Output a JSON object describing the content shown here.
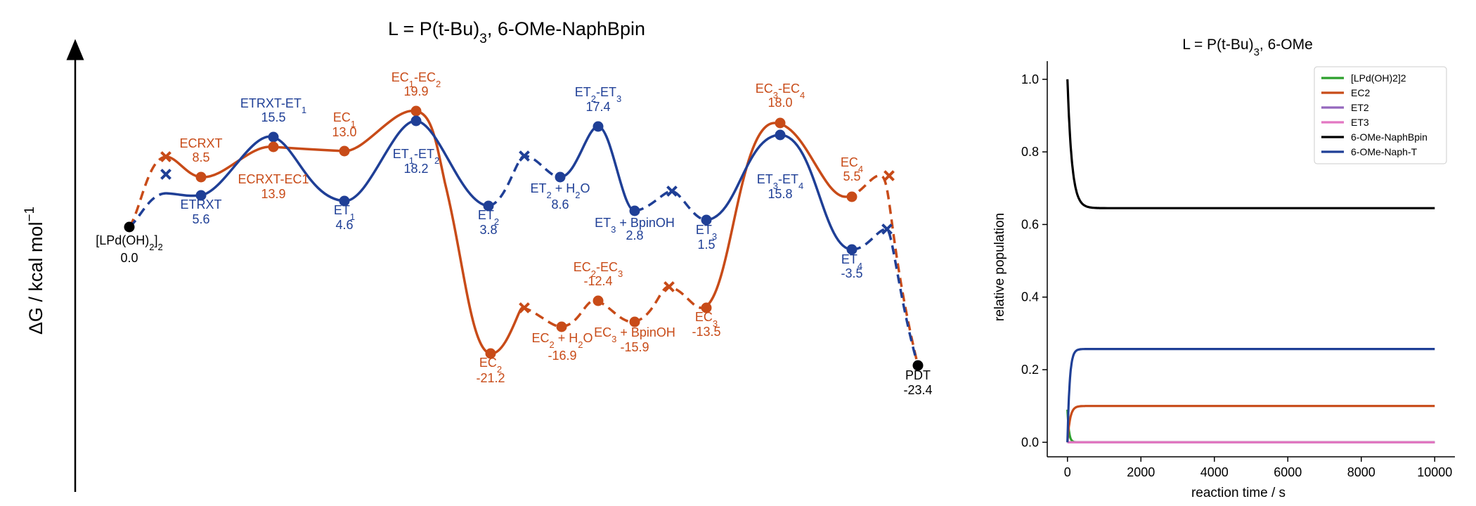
{
  "chart_data": [
    {
      "type": "line",
      "title": "L = P(t-Bu)3, 6-OMe-NaphBpin",
      "ylabel": "ΔG / kcal mol-1",
      "colors": {
        "orange": "#c84b18",
        "blue": "#1f3f96",
        "black": "#000000"
      },
      "points": [
        {
          "id": "start",
          "name": "[LPd(OH)2]2",
          "value": "0.0",
          "color": "black",
          "kind": "dot"
        },
        {
          "id": "ecrxt",
          "name": "ECRXT",
          "value": "8.5",
          "color": "orange",
          "kind": "dot"
        },
        {
          "id": "etrxt",
          "name": "ETRXT",
          "value": "5.6",
          "color": "blue",
          "kind": "dot"
        },
        {
          "id": "etrxt_et1",
          "name": "ETRXT-ET1",
          "value": "15.5",
          "color": "blue",
          "kind": "dot"
        },
        {
          "id": "ecrxt_ec1",
          "name": "ECRXT-EC1",
          "value": "13.9",
          "color": "orange",
          "kind": "dot"
        },
        {
          "id": "ec1",
          "name": "EC1",
          "value": "13.0",
          "color": "orange",
          "kind": "dot"
        },
        {
          "id": "et1",
          "name": "ET1",
          "value": "4.6",
          "color": "blue",
          "kind": "dot"
        },
        {
          "id": "ec1_ec2",
          "name": "EC1-EC2",
          "value": "19.9",
          "color": "orange",
          "kind": "dot"
        },
        {
          "id": "et1_et2",
          "name": "ET1-ET2",
          "value": "18.2",
          "color": "blue",
          "kind": "dot"
        },
        {
          "id": "et2",
          "name": "ET2",
          "value": "3.8",
          "color": "blue",
          "kind": "dot"
        },
        {
          "id": "et2_h2o",
          "name": "ET2 + H2O",
          "value": "8.6",
          "color": "blue",
          "kind": "dot"
        },
        {
          "id": "et2_et3",
          "name": "ET2-ET3",
          "value": "17.4",
          "color": "blue",
          "kind": "dot"
        },
        {
          "id": "et3_bpinoh",
          "name": "ET3 + BpinOH",
          "value": "2.8",
          "color": "blue",
          "kind": "dot"
        },
        {
          "id": "et3",
          "name": "ET3",
          "value": "1.5",
          "color": "blue",
          "kind": "dot"
        },
        {
          "id": "et3_et4",
          "name": "ET3-ET4",
          "value": "15.8",
          "color": "blue",
          "kind": "dot"
        },
        {
          "id": "ec3_ec4",
          "name": "EC3-EC4",
          "value": "18.0",
          "color": "orange",
          "kind": "dot"
        },
        {
          "id": "ec4",
          "name": "EC4",
          "value": "5.5",
          "color": "orange",
          "kind": "dot"
        },
        {
          "id": "et4",
          "name": "ET4",
          "value": "-3.5",
          "color": "blue",
          "kind": "dot"
        },
        {
          "id": "ec2",
          "name": "EC2",
          "value": "-21.2",
          "color": "orange",
          "kind": "dot"
        },
        {
          "id": "ec2_h2o",
          "name": "EC2 + H2O",
          "value": "-16.9",
          "color": "orange",
          "kind": "dot"
        },
        {
          "id": "ec2_ec3",
          "name": "EC2-EC3",
          "value": "-12.4",
          "color": "orange",
          "kind": "dot"
        },
        {
          "id": "ec3_bpinoh",
          "name": "EC3 + BpinOH",
          "value": "-15.9",
          "color": "orange",
          "kind": "dot"
        },
        {
          "id": "ec3",
          "name": "EC3",
          "value": "-13.5",
          "color": "orange",
          "kind": "dot"
        },
        {
          "id": "pdt",
          "name": "PDT",
          "value": "-23.4",
          "color": "black",
          "kind": "dot"
        }
      ]
    },
    {
      "type": "line",
      "title": "L = P(t-Bu)3, 6-OMe",
      "xlabel": "reaction time / s",
      "ylabel": "relative population",
      "xlim": [
        0,
        10000
      ],
      "ylim": [
        0,
        1.0
      ],
      "xticks": [
        "0",
        "2000",
        "4000",
        "6000",
        "8000",
        "10000"
      ],
      "yticks": [
        "0.0",
        "0.2",
        "0.4",
        "0.6",
        "0.8",
        "1.0"
      ],
      "legend_position": "top-right",
      "series": [
        {
          "name": "[LPd(OH)2]2",
          "color": "#2ca02c",
          "start": 0.09,
          "end": 0.0,
          "tau": 40
        },
        {
          "name": "EC2",
          "color": "#c84b18",
          "start": 0.0,
          "end": 0.1,
          "tau": 70
        },
        {
          "name": "ET2",
          "color": "#9467bd",
          "start": 0.0,
          "end": 0.0,
          "tau": 50
        },
        {
          "name": "ET3",
          "color": "#e377c2",
          "start": 0.0,
          "end": 0.0,
          "tau": 50
        },
        {
          "name": "6-OMe-NaphBpin",
          "color": "#000000",
          "start": 1.0,
          "end": 0.645,
          "tau": 120
        },
        {
          "name": "6-OMe-Naph-T",
          "color": "#1f3f96",
          "start": 0.0,
          "end": 0.257,
          "tau": 60
        }
      ]
    }
  ]
}
